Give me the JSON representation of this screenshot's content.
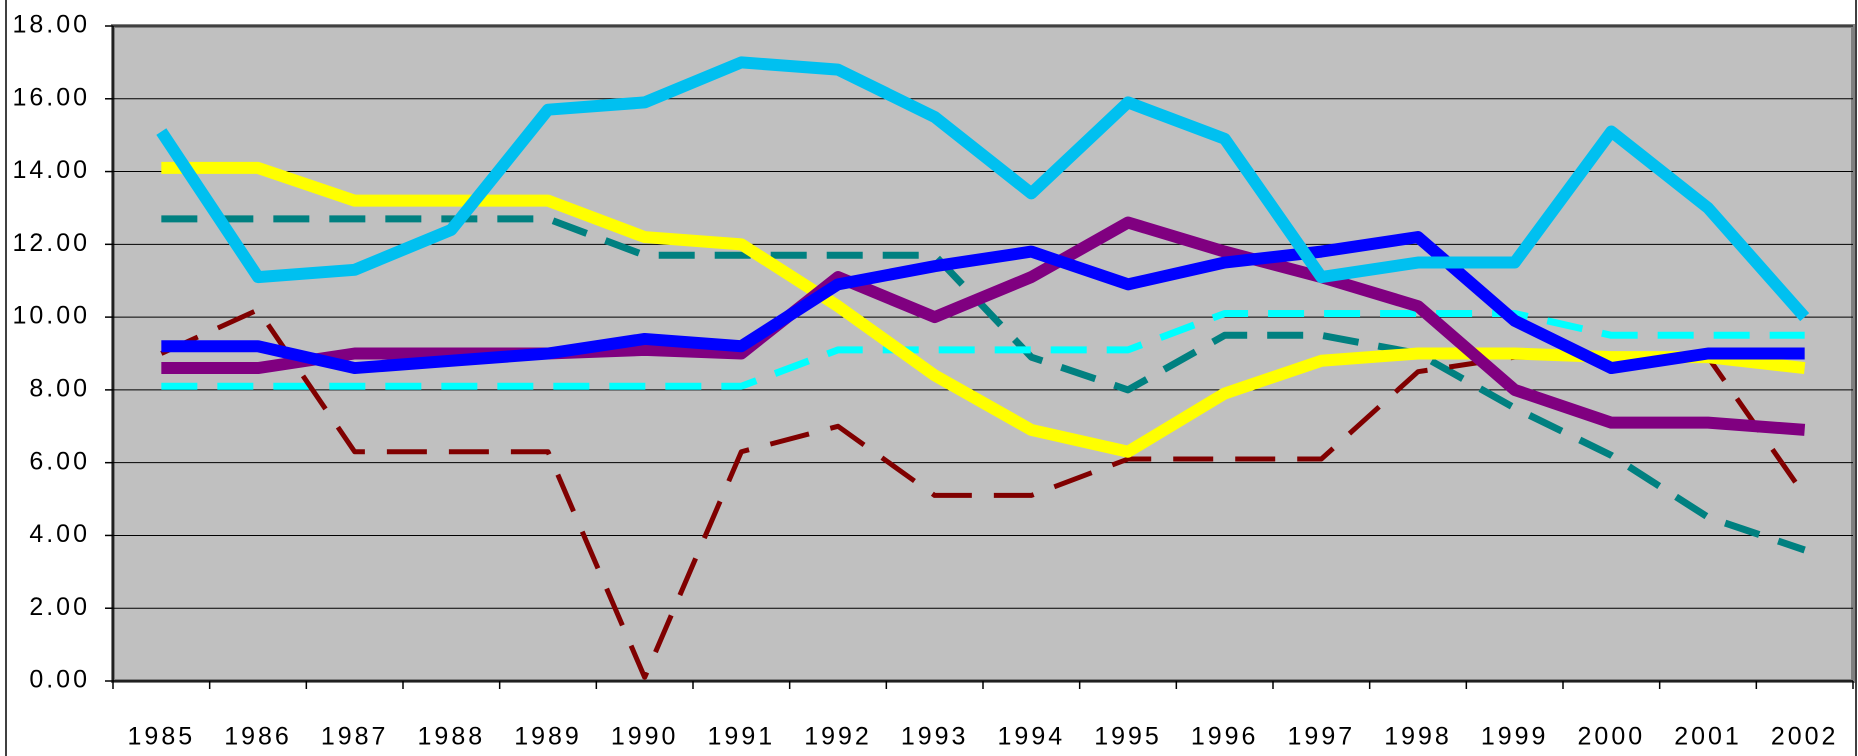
{
  "chart_data": {
    "type": "line",
    "categories": [
      "1985",
      "1986",
      "1987",
      "1988",
      "1989",
      "1990",
      "1991",
      "1992",
      "1993",
      "1994",
      "1995",
      "1996",
      "1997",
      "1998",
      "1999",
      "2000",
      "2001",
      "2002"
    ],
    "ylim": [
      0,
      18
    ],
    "yticks": [
      {
        "value": 0,
        "label": "0.00"
      },
      {
        "value": 2,
        "label": "2.00"
      },
      {
        "value": 4,
        "label": "4.00"
      },
      {
        "value": 6,
        "label": "6.00"
      },
      {
        "value": 8,
        "label": "8.00"
      },
      {
        "value": 10,
        "label": "10.00"
      },
      {
        "value": 12,
        "label": "12.00"
      },
      {
        "value": 14,
        "label": "14.00"
      },
      {
        "value": 16,
        "label": "16.00"
      },
      {
        "value": 18,
        "label": "18.00"
      }
    ],
    "grid": true,
    "series": [
      {
        "color": "#008080",
        "dash": "dashed",
        "values": [
          12.7,
          12.7,
          12.7,
          12.7,
          12.7,
          11.7,
          11.7,
          11.7,
          11.7,
          8.9,
          8.0,
          9.5,
          9.5,
          9.0,
          7.5,
          6.2,
          4.5,
          3.6
        ]
      },
      {
        "color": "#00ffff",
        "dash": "dashed",
        "values": [
          8.1,
          8.1,
          8.1,
          8.1,
          8.1,
          8.1,
          8.1,
          9.1,
          9.1,
          9.1,
          9.1,
          10.1,
          10.1,
          10.1,
          10.1,
          9.5,
          9.5,
          9.5
        ]
      },
      {
        "color": "#800000",
        "dash": "dashed",
        "values": [
          9.0,
          10.2,
          6.3,
          6.3,
          6.3,
          0.1,
          6.3,
          7.0,
          5.1,
          5.1,
          6.1,
          6.1,
          6.1,
          8.5,
          8.9,
          8.9,
          8.9,
          5.1
        ]
      },
      {
        "color": "#ffff00",
        "dash": "solid",
        "values": [
          14.1,
          14.1,
          13.2,
          13.2,
          13.2,
          12.2,
          12.0,
          10.3,
          8.4,
          6.9,
          6.3,
          7.9,
          8.8,
          9.0,
          9.0,
          8.9,
          8.9,
          8.6
        ]
      },
      {
        "color": "#800080",
        "dash": "solid",
        "values": [
          8.6,
          8.6,
          9.0,
          9.0,
          9.0,
          9.1,
          9.0,
          11.1,
          10.0,
          11.1,
          12.6,
          11.8,
          11.1,
          10.3,
          8.0,
          7.1,
          7.1,
          6.9
        ]
      },
      {
        "color": "#0000ff",
        "dash": "solid",
        "values": [
          9.2,
          9.2,
          8.6,
          8.8,
          9.0,
          9.4,
          9.2,
          10.9,
          11.4,
          11.8,
          10.9,
          11.5,
          11.8,
          12.2,
          9.9,
          8.6,
          9.0,
          9.0
        ]
      },
      {
        "color": "#00c0f0",
        "dash": "solid",
        "values": [
          15.1,
          11.1,
          11.3,
          12.4,
          15.7,
          15.9,
          17.0,
          16.8,
          15.5,
          13.4,
          15.9,
          14.9,
          11.1,
          11.5,
          11.5,
          15.1,
          13.0,
          10.0
        ]
      }
    ]
  }
}
